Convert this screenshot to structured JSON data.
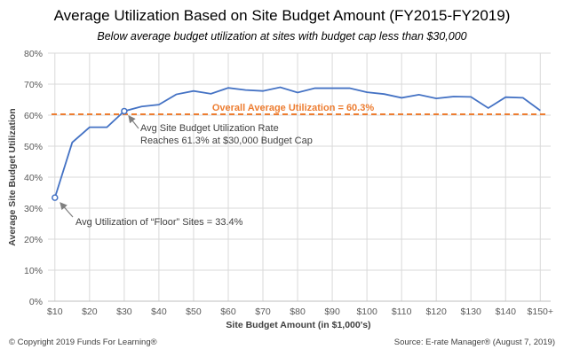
{
  "header": {
    "title": "Average Utilization Based on Site Budget Amount (FY2015-FY2019)",
    "subtitle": "Below average budget utilization at sites with budget cap less than $30,000"
  },
  "footer": {
    "copyright": "© Copyright 2019 Funds For Learning®",
    "source": "Source: E-rate Manager® (August 7, 2019)"
  },
  "chart_data": {
    "type": "line",
    "xlabel": "Site Budget Amount (in $1,000's)",
    "ylabel": "Average Site Budget Utilization",
    "ylim": [
      0,
      80
    ],
    "ytick_labels": [
      "0%",
      "10%",
      "20%",
      "30%",
      "40%",
      "50%",
      "60%",
      "70%",
      "80%"
    ],
    "xtick_labels": [
      "$10",
      "$20",
      "$30",
      "$40",
      "$50",
      "$60",
      "$70",
      "$80",
      "$90",
      "$100",
      "$110",
      "$120",
      "$130",
      "$140",
      "$150+"
    ],
    "xtick_values": [
      10,
      20,
      30,
      40,
      50,
      60,
      70,
      80,
      90,
      100,
      110,
      120,
      130,
      140,
      150
    ],
    "xlim": [
      8,
      153
    ],
    "grid": true,
    "series": [
      {
        "color": "#4472c4",
        "x": [
          10,
          15,
          20,
          25,
          30,
          35,
          40,
          45,
          50,
          55,
          60,
          65,
          70,
          75,
          80,
          85,
          90,
          95,
          100,
          105,
          110,
          115,
          120,
          125,
          130,
          135,
          140,
          145,
          150
        ],
        "values": [
          33.4,
          51.2,
          56.1,
          56.1,
          61.3,
          62.8,
          63.4,
          66.7,
          67.8,
          66.9,
          68.8,
          68.1,
          67.8,
          69.0,
          67.3,
          68.7,
          68.7,
          68.7,
          67.4,
          66.8,
          65.6,
          66.6,
          65.4,
          66.0,
          65.9,
          62.3,
          65.8,
          65.6,
          61.5
        ]
      }
    ],
    "reference_line": {
      "value": 60.3,
      "label": "Overall Average Utilization = 60.3%",
      "color": "#ed7d31"
    },
    "highlight_points": [
      {
        "x": 10,
        "y": 33.4
      },
      {
        "x": 30,
        "y": 61.3
      }
    ],
    "annotations": [
      {
        "lines": [
          "Avg Utilization of “Floor” Sites = 33.4%"
        ]
      },
      {
        "lines": [
          "Avg Site Budget Utilization Rate",
          "Reaches 61.3% at $30,000 Budget Cap"
        ]
      }
    ]
  }
}
